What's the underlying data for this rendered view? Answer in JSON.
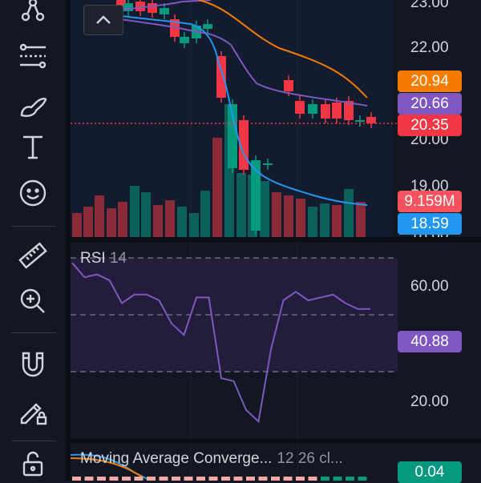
{
  "toolbar": {
    "items": [
      {
        "name": "trend-line-tool-icon"
      },
      {
        "name": "fib-retracement-tool-icon"
      },
      {
        "name": "brush-tool-icon"
      },
      {
        "name": "text-tool-icon"
      },
      {
        "name": "emoji-tool-icon"
      },
      {
        "name": "ruler-tool-icon"
      },
      {
        "name": "zoom-in-tool-icon"
      },
      {
        "name": "magnet-tool-icon"
      },
      {
        "name": "lock-drawing-tool-icon"
      },
      {
        "name": "unlock-icon"
      }
    ]
  },
  "price_axis": {
    "labels": [
      "23.00",
      "22.00",
      "20.00",
      "19.00"
    ],
    "bottom_partial_label": "18.00"
  },
  "price_tags": [
    {
      "value": "20.94",
      "color": "#f57c00"
    },
    {
      "value": "20.66",
      "color": "#7e57c2"
    },
    {
      "value": "20.35",
      "color": "#f23645"
    },
    {
      "value": "9.159M",
      "color": "#f7525f"
    },
    {
      "value": "18.59",
      "color": "#2196f3"
    }
  ],
  "rsi": {
    "title": "RSI",
    "period": "14",
    "axis_labels": [
      "60.00",
      "20.00"
    ],
    "value_tag": {
      "value": "40.88",
      "color": "#7e57c2"
    },
    "values": [
      58,
      53,
      54,
      52,
      44,
      47,
      47,
      45,
      37,
      33,
      46,
      46,
      18,
      17,
      7,
      3,
      28,
      45,
      48,
      45,
      46,
      47,
      44,
      42,
      42
    ]
  },
  "macd": {
    "title": "Moving Average Converge...",
    "params": "12 26 cl...",
    "value_tag": {
      "value": "0.04",
      "color": "#089981"
    }
  },
  "colors": {
    "up": "#089981",
    "down": "#f23645",
    "ema_orange": "#f57c00",
    "ma_purple": "#7e57c2",
    "bb_blue": "#2196f3"
  }
}
